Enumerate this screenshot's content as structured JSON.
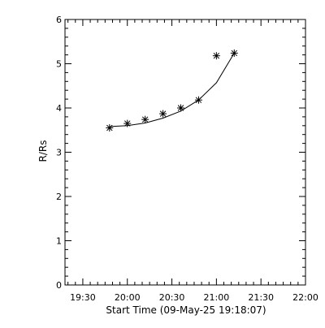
{
  "chart_data": {
    "type": "scatter",
    "xlabel": "Start Time (09-May-25 19:18:07)",
    "ylabel": "R/Rs",
    "xlim": [
      "19:18",
      "22:00"
    ],
    "ylim": [
      0,
      6
    ],
    "x_ticks": [
      "19:30",
      "20:00",
      "20:30",
      "21:00",
      "21:30",
      "22:00"
    ],
    "y_ticks": [
      "0",
      "1",
      "2",
      "3",
      "4",
      "5",
      "6"
    ],
    "points": [
      {
        "x": "19:48",
        "y": 3.55
      },
      {
        "x": "20:00",
        "y": 3.65
      },
      {
        "x": "20:12",
        "y": 3.74
      },
      {
        "x": "20:24",
        "y": 3.87
      },
      {
        "x": "20:36",
        "y": 4.0
      },
      {
        "x": "20:48",
        "y": 4.18
      },
      {
        "x": "21:00",
        "y": 5.18
      },
      {
        "x": "21:12",
        "y": 5.24
      }
    ],
    "fit_line": [
      {
        "x": "19:48",
        "y": 3.58
      },
      {
        "x": "20:00",
        "y": 3.6
      },
      {
        "x": "20:12",
        "y": 3.66
      },
      {
        "x": "20:24",
        "y": 3.77
      },
      {
        "x": "20:36",
        "y": 3.93
      },
      {
        "x": "20:48",
        "y": 4.18
      },
      {
        "x": "21:00",
        "y": 4.57
      },
      {
        "x": "21:12",
        "y": 5.24
      }
    ],
    "marker": "asterisk",
    "grid": false,
    "legend": "none",
    "color": "#000000"
  }
}
